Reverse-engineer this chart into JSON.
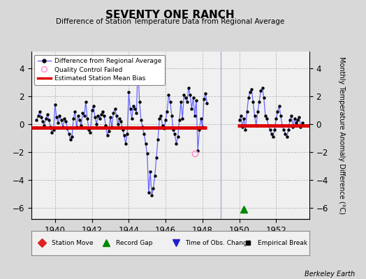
{
  "title": "SEVENTY ONE RANCH",
  "subtitle": "Difference of Station Temperature Data from Regional Average",
  "ylabel": "Monthly Temperature Anomaly Difference (°C)",
  "credit": "Berkeley Earth",
  "xlim": [
    1938.7,
    1953.8
  ],
  "ylim": [
    -6.8,
    5.2
  ],
  "yticks": [
    -6,
    -4,
    -2,
    0,
    2,
    4
  ],
  "xticks": [
    1940,
    1942,
    1944,
    1946,
    1948,
    1950,
    1952
  ],
  "bg_color": "#d8d8d8",
  "plot_bg": "#f0f0f0",
  "grid_color": "#bbbbbb",
  "bias_color": "#dd0000",
  "bias_y1": -0.25,
  "bias_x1_start": 1938.7,
  "bias_x1_end": 1948.25,
  "bias_y2": -0.1,
  "bias_x2_start": 1949.9,
  "bias_x2_end": 1953.8,
  "gap_triangle_x": 1950.25,
  "gap_triangle_y": -6.1,
  "qc_x": 1947.58,
  "qc_y": -2.1,
  "gap_line_x": 1949.0,
  "series1_x": [
    1939.0,
    1939.083,
    1939.167,
    1939.25,
    1939.333,
    1939.417,
    1939.5,
    1939.583,
    1939.667,
    1939.75,
    1939.833,
    1939.917,
    1940.0,
    1940.083,
    1940.167,
    1940.25,
    1940.333,
    1940.417,
    1940.5,
    1940.583,
    1940.667,
    1940.75,
    1940.833,
    1940.917,
    1941.0,
    1941.083,
    1941.167,
    1941.25,
    1941.333,
    1941.417,
    1941.5,
    1941.583,
    1941.667,
    1941.75,
    1941.833,
    1941.917,
    1942.0,
    1942.083,
    1942.167,
    1942.25,
    1942.333,
    1942.417,
    1942.5,
    1942.583,
    1942.667,
    1942.75,
    1942.833,
    1942.917,
    1943.0,
    1943.083,
    1943.167,
    1943.25,
    1943.333,
    1943.417,
    1943.5,
    1943.583,
    1943.667,
    1943.75,
    1943.833,
    1943.917,
    1944.0,
    1944.083,
    1944.167,
    1944.25,
    1944.333,
    1944.417,
    1944.5,
    1944.583,
    1944.667,
    1944.75,
    1944.833,
    1944.917,
    1945.0,
    1945.083,
    1945.167,
    1945.25,
    1945.333,
    1945.417,
    1945.5,
    1945.583,
    1945.667,
    1945.75,
    1945.833,
    1945.917,
    1946.0,
    1946.083,
    1946.167,
    1946.25,
    1946.333,
    1946.417,
    1946.5,
    1946.583,
    1946.667,
    1946.75,
    1946.833,
    1946.917,
    1947.0,
    1947.083,
    1947.167,
    1947.25,
    1947.333,
    1947.417,
    1947.5,
    1947.583,
    1947.667,
    1947.75,
    1947.833,
    1947.917,
    1948.0,
    1948.083,
    1948.167,
    1948.25
  ],
  "series1_y": [
    0.3,
    0.6,
    0.9,
    0.5,
    0.2,
    -0.1,
    0.4,
    0.7,
    0.3,
    -0.2,
    -0.6,
    -0.4,
    1.4,
    0.5,
    0.1,
    0.6,
    0.3,
    -0.2,
    0.4,
    0.2,
    -0.3,
    -0.7,
    -1.1,
    -0.9,
    0.4,
    0.9,
    -0.2,
    0.6,
    0.3,
    -0.1,
    0.8,
    0.6,
    1.6,
    0.4,
    -0.4,
    -0.6,
    1.0,
    1.3,
    0.5,
    0.0,
    0.6,
    0.4,
    0.7,
    0.9,
    0.6,
    -0.1,
    -0.8,
    -0.5,
    0.5,
    -0.2,
    0.8,
    1.1,
    0.6,
    0.0,
    0.4,
    0.2,
    -0.4,
    -0.8,
    -1.4,
    -0.7,
    2.3,
    1.1,
    0.4,
    1.3,
    1.1,
    0.8,
    4.2,
    1.6,
    0.3,
    -0.2,
    -0.7,
    -1.4,
    -2.1,
    -4.9,
    -3.4,
    -5.1,
    -4.6,
    -3.7,
    -2.4,
    -1.1,
    0.4,
    0.6,
    -0.1,
    -0.3,
    0.3,
    0.9,
    2.1,
    1.6,
    0.6,
    -0.4,
    -0.7,
    -1.4,
    -0.9,
    0.3,
    1.6,
    0.4,
    2.1,
    1.9,
    1.6,
    2.6,
    2.1,
    1.1,
    1.9,
    0.6,
    1.7,
    -1.9,
    -0.4,
    0.4,
    -0.2,
    1.8,
    2.2,
    1.5
  ],
  "series2_x": [
    1950.0,
    1950.083,
    1950.167,
    1950.25,
    1950.333,
    1950.417,
    1950.5,
    1950.583,
    1950.667,
    1950.75,
    1950.833,
    1950.917,
    1951.0,
    1951.083,
    1951.167,
    1951.25,
    1951.333,
    1951.417,
    1951.5,
    1951.583,
    1951.667,
    1951.75,
    1951.833,
    1951.917,
    1952.0,
    1952.083,
    1952.167,
    1952.25,
    1952.333,
    1952.417,
    1952.5,
    1952.583,
    1952.667,
    1952.75,
    1952.833,
    1952.917,
    1953.0,
    1953.083,
    1953.167,
    1953.25,
    1953.333,
    1953.417
  ],
  "series2_y": [
    0.3,
    0.6,
    -0.2,
    0.4,
    -0.4,
    0.9,
    1.9,
    2.3,
    2.5,
    1.6,
    0.6,
    -0.1,
    0.9,
    1.6,
    2.4,
    2.6,
    1.9,
    0.6,
    0.4,
    -0.1,
    -0.4,
    -0.7,
    -0.9,
    -0.4,
    0.4,
    0.9,
    1.3,
    0.6,
    -0.1,
    -0.4,
    -0.7,
    -0.9,
    -0.4,
    0.3,
    0.6,
    -0.2,
    0.4,
    0.1,
    0.3,
    0.5,
    -0.2,
    0.1
  ]
}
